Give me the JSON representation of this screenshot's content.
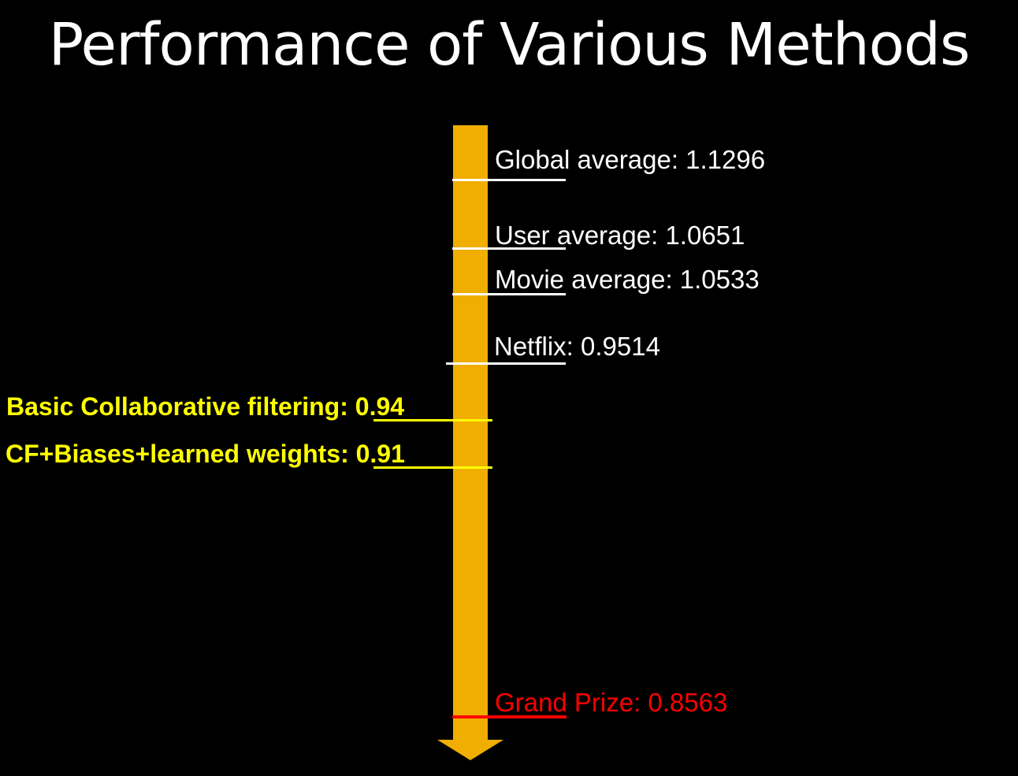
{
  "title": "Performance of Various Methods",
  "colors": {
    "background": "#000000",
    "arrow": "#F0AE00",
    "baseline_label": "#FFFFFF",
    "method_label": "#FFFF00",
    "target_label": "#FF0000"
  },
  "scale": {
    "direction": "down",
    "arrow_icon": "down-arrow-icon"
  },
  "markers": [
    {
      "id": "global-average",
      "text": "Global average: 1.1296",
      "value": 1.1296,
      "side": "right",
      "color": "#FFFFFF"
    },
    {
      "id": "user-average",
      "text": "User average: 1.0651",
      "value": 1.0651,
      "side": "right",
      "color": "#FFFFFF"
    },
    {
      "id": "movie-average",
      "text": "Movie average: 1.0533",
      "value": 1.0533,
      "side": "right",
      "color": "#FFFFFF"
    },
    {
      "id": "netflix",
      "text": "Netflix: 0.9514",
      "value": 0.9514,
      "side": "right",
      "color": "#FFFFFF"
    },
    {
      "id": "basic-cf",
      "text": "Basic Collaborative filtering: 0.94",
      "value": 0.94,
      "side": "left",
      "color": "#FFFF00"
    },
    {
      "id": "cf-biases",
      "text": "CF+Biases+learned weights: 0.91",
      "value": 0.91,
      "side": "left",
      "color": "#FFFF00"
    },
    {
      "id": "grand-prize",
      "text": "Grand Prize: 0.8563",
      "value": 0.8563,
      "side": "right",
      "color": "#FF0000"
    }
  ]
}
